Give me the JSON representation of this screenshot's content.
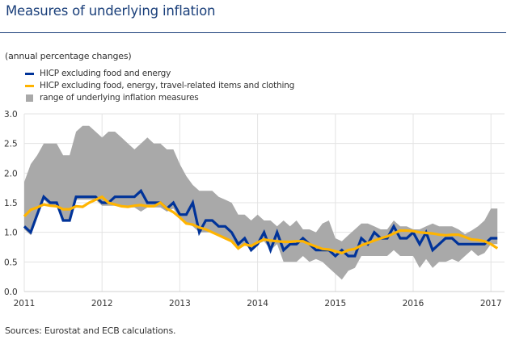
{
  "title": "Measures of underlying inflation",
  "subtitle": "(annual percentage changes)",
  "source": "Sources: Eurostat and ECB calculations.",
  "legend": [
    {
      "label": "HICP excluding food and energy",
      "color": "#003399",
      "kind": "line"
    },
    {
      "label": "HICP excluding food, energy, travel-related items and clothing",
      "color": "#ffb400",
      "kind": "line"
    },
    {
      "label": "range of underlying inflation measures",
      "color": "#a9a9a9",
      "kind": "area"
    }
  ],
  "chart_data": {
    "type": "line",
    "title": "Measures of underlying inflation",
    "subtitle": "(annual percentage changes)",
    "xlabel": "",
    "ylabel": "",
    "x_start": "2011-01",
    "frequency": "monthly",
    "x_ticks": [
      "2011",
      "2012",
      "2013",
      "2014",
      "2015",
      "2016",
      "2017"
    ],
    "y_ticks": [
      "0.0",
      "0.5",
      "1.0",
      "1.5",
      "2.0",
      "2.5",
      "3.0"
    ],
    "ylim": [
      0,
      3
    ],
    "grid": true,
    "legend_position": "top-left",
    "series": [
      {
        "name": "HICP excluding food and energy",
        "color": "#003399",
        "values": [
          1.1,
          1.0,
          1.3,
          1.6,
          1.5,
          1.5,
          1.2,
          1.2,
          1.6,
          1.6,
          1.6,
          1.6,
          1.5,
          1.5,
          1.6,
          1.6,
          1.6,
          1.6,
          1.7,
          1.5,
          1.5,
          1.5,
          1.4,
          1.5,
          1.3,
          1.3,
          1.5,
          1.0,
          1.2,
          1.2,
          1.1,
          1.1,
          1.0,
          0.8,
          0.9,
          0.7,
          0.8,
          1.0,
          0.7,
          1.0,
          0.7,
          0.8,
          0.8,
          0.9,
          0.8,
          0.7,
          0.7,
          0.7,
          0.6,
          0.7,
          0.6,
          0.6,
          0.9,
          0.8,
          1.0,
          0.9,
          0.9,
          1.1,
          0.9,
          0.9,
          1.0,
          0.8,
          1.0,
          0.7,
          0.8,
          0.9,
          0.9,
          0.8,
          0.8,
          0.8,
          0.8,
          0.8,
          0.9,
          0.9
        ]
      },
      {
        "name": "HICP excluding food, energy, travel-related items and clothing",
        "color": "#ffb400",
        "values": [
          1.27,
          1.38,
          1.42,
          1.47,
          1.45,
          1.44,
          1.39,
          1.39,
          1.44,
          1.43,
          1.5,
          1.55,
          1.6,
          1.5,
          1.47,
          1.44,
          1.43,
          1.45,
          1.46,
          1.44,
          1.44,
          1.5,
          1.4,
          1.34,
          1.25,
          1.15,
          1.13,
          1.08,
          1.05,
          1.0,
          0.95,
          0.9,
          0.85,
          0.73,
          0.8,
          0.77,
          0.83,
          0.88,
          0.86,
          0.85,
          0.84,
          0.84,
          0.85,
          0.85,
          0.8,
          0.76,
          0.72,
          0.71,
          0.68,
          0.65,
          0.7,
          0.72,
          0.78,
          0.82,
          0.86,
          0.9,
          0.93,
          0.98,
          1.03,
          1.03,
          1.02,
          1.0,
          0.99,
          0.98,
          0.96,
          0.95,
          0.96,
          0.96,
          0.92,
          0.88,
          0.87,
          0.85,
          0.8,
          0.73
        ]
      }
    ],
    "range": {
      "name": "range of underlying inflation measures",
      "color": "#a9a9a9",
      "upper": [
        1.85,
        2.15,
        2.3,
        2.5,
        2.5,
        2.5,
        2.3,
        2.3,
        2.7,
        2.8,
        2.8,
        2.7,
        2.6,
        2.7,
        2.7,
        2.6,
        2.5,
        2.4,
        2.5,
        2.6,
        2.5,
        2.5,
        2.4,
        2.4,
        2.15,
        1.95,
        1.8,
        1.7,
        1.7,
        1.7,
        1.6,
        1.55,
        1.5,
        1.3,
        1.3,
        1.2,
        1.3,
        1.2,
        1.2,
        1.1,
        1.2,
        1.1,
        1.2,
        1.05,
        1.05,
        1.0,
        1.15,
        1.2,
        0.9,
        0.85,
        0.95,
        1.05,
        1.15,
        1.15,
        1.1,
        1.05,
        1.05,
        1.2,
        1.1,
        1.1,
        1.05,
        1.05,
        1.1,
        1.15,
        1.1,
        1.1,
        1.1,
        1.05,
        0.97,
        1.03,
        1.1,
        1.2,
        1.4,
        1.4
      ],
      "lower": [
        1.05,
        0.95,
        1.3,
        1.55,
        1.45,
        1.45,
        1.2,
        1.2,
        1.55,
        1.55,
        1.55,
        1.55,
        1.45,
        1.45,
        1.45,
        1.42,
        1.42,
        1.42,
        1.35,
        1.42,
        1.42,
        1.42,
        1.35,
        1.4,
        1.25,
        1.15,
        1.1,
        1.0,
        1.0,
        1.0,
        0.95,
        0.9,
        0.85,
        0.7,
        0.8,
        0.7,
        0.8,
        0.85,
        0.7,
        0.8,
        0.5,
        0.5,
        0.5,
        0.6,
        0.5,
        0.55,
        0.5,
        0.4,
        0.3,
        0.2,
        0.35,
        0.4,
        0.6,
        0.6,
        0.6,
        0.6,
        0.6,
        0.7,
        0.6,
        0.6,
        0.6,
        0.4,
        0.55,
        0.4,
        0.5,
        0.5,
        0.55,
        0.5,
        0.6,
        0.7,
        0.6,
        0.65,
        0.8,
        0.8
      ]
    }
  }
}
